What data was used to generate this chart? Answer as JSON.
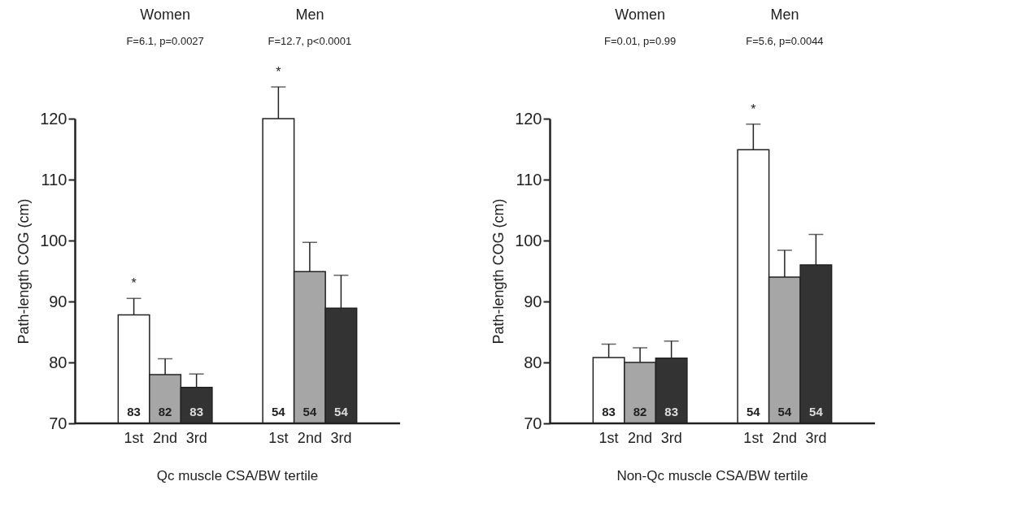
{
  "chart_data": [
    {
      "type": "bar",
      "categories": [
        "Women",
        "Men"
      ],
      "xlabel": "Qc muscle CSA/BW tertile",
      "ylabel": "Path-length COG (cm)",
      "ylim": [
        70,
        120
      ],
      "yticks": [
        70,
        80,
        90,
        100,
        110,
        120
      ],
      "grid": false,
      "series": [
        {
          "name": "1st",
          "color": "#ffffff",
          "values": [
            87.8,
            120.0
          ],
          "errors": [
            2.7,
            5.2
          ]
        },
        {
          "name": "2nd",
          "color": "#a6a6a6",
          "values": [
            78.0,
            94.9
          ],
          "errors": [
            2.6,
            4.8
          ]
        },
        {
          "name": "3rd",
          "color": "#333333",
          "values": [
            75.9,
            88.9
          ],
          "errors": [
            2.2,
            5.4
          ]
        }
      ],
      "annotations": [
        "F=6.1, p=0.0027",
        "F=12.7, p<0.0001",
        "83",
        "82",
        "83",
        "54",
        "54",
        "54",
        "*",
        "*"
      ]
    },
    {
      "type": "bar",
      "categories": [
        "Women",
        "Men"
      ],
      "xlabel": "Non-Qc muscle CSA/BW tertile",
      "ylabel": "Path-length COG (cm)",
      "ylim": [
        70,
        120
      ],
      "yticks": [
        70,
        80,
        90,
        100,
        110,
        120
      ],
      "grid": false,
      "series": [
        {
          "name": "1st",
          "color": "#ffffff",
          "values": [
            80.8,
            114.9
          ],
          "errors": [
            2.2,
            4.2
          ]
        },
        {
          "name": "2nd",
          "color": "#a6a6a6",
          "values": [
            80.0,
            94.0
          ],
          "errors": [
            2.4,
            4.4
          ]
        },
        {
          "name": "3rd",
          "color": "#333333",
          "values": [
            80.7,
            96.0
          ],
          "errors": [
            2.8,
            5.0
          ]
        }
      ],
      "annotations": [
        "F=0.01, p=0.99",
        "F=5.6, p=0.0044",
        "83",
        "82",
        "83",
        "54",
        "54",
        "54",
        "*"
      ]
    }
  ]
}
